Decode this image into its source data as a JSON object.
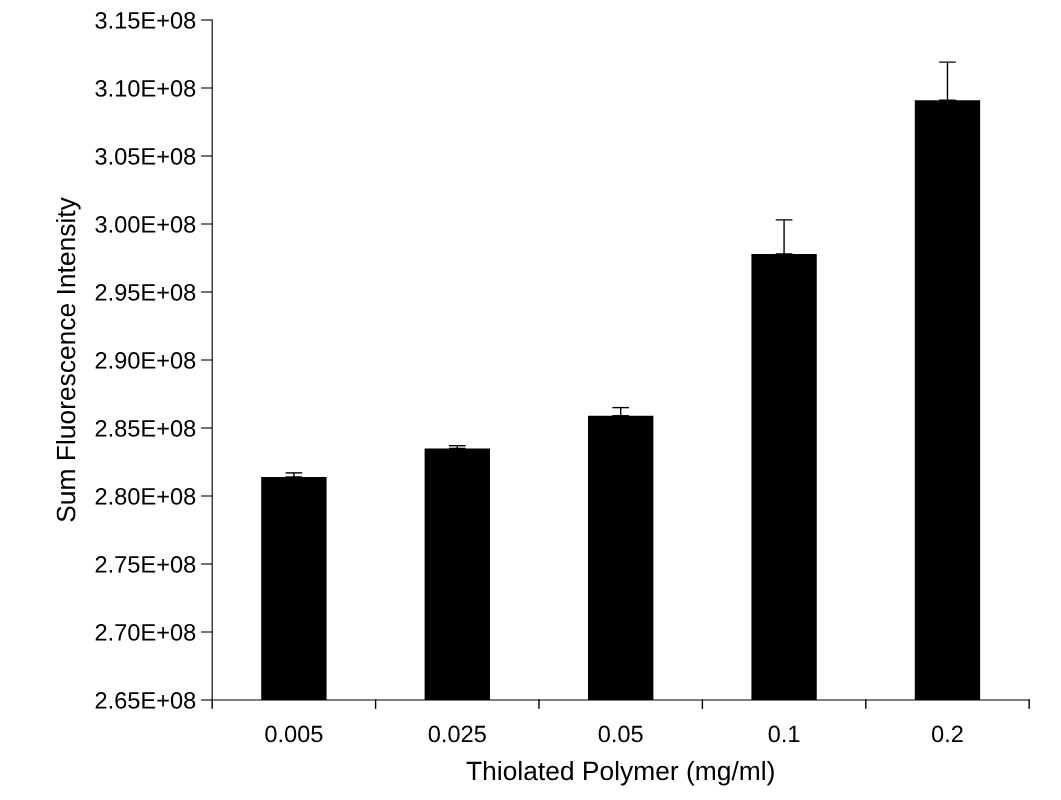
{
  "chart_data": {
    "type": "bar",
    "xlabel": "Thiolated Polymer (mg/ml)",
    "ylabel": "Sum Fluorescence Intensity",
    "categories": [
      "0.005",
      "0.025",
      "0.05",
      "0.1",
      "0.2"
    ],
    "values": [
      281400000,
      283500000,
      285900000,
      297800000,
      309100000
    ],
    "errors": [
      [
        281400000,
        281700000
      ],
      [
        283500000,
        283700000
      ],
      [
        285900000,
        286500000
      ],
      [
        297800000,
        300300000
      ],
      [
        309100000,
        311900000
      ]
    ],
    "color": "#000000",
    "ylim": [
      265000000,
      315000000
    ],
    "yticks": [
      {
        "value": 265000000,
        "label": "2.65E+08"
      },
      {
        "value": 270000000,
        "label": "2.70E+08"
      },
      {
        "value": 275000000,
        "label": "2.75E+08"
      },
      {
        "value": 280000000,
        "label": "2.80E+08"
      },
      {
        "value": 285000000,
        "label": "2.85E+08"
      },
      {
        "value": 290000000,
        "label": "2.90E+08"
      },
      {
        "value": 295000000,
        "label": "2.95E+08"
      },
      {
        "value": 300000000,
        "label": "3.00E+08"
      },
      {
        "value": 305000000,
        "label": "3.05E+08"
      },
      {
        "value": 310000000,
        "label": "3.10E+08"
      },
      {
        "value": 315000000,
        "label": "3.15E+08"
      }
    ],
    "grid": false,
    "legend": false
  }
}
